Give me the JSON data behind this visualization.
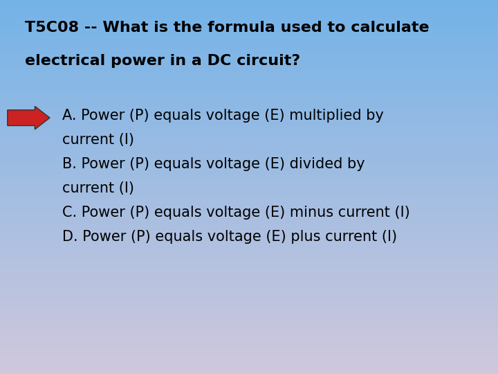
{
  "title_line1": "T5C08 -- What is the formula used to calculate",
  "title_line2": "electrical power in a DC circuit?",
  "answer_A_line1": "A. Power (P) equals voltage (E) multiplied by",
  "answer_A_line2": "current (I)",
  "answer_B_line1": "B. Power (P) equals voltage (E) divided by",
  "answer_B_line2": "current (I)",
  "answer_C": "C. Power (P) equals voltage (E) minus current (I)",
  "answer_D": "D. Power (P) equals voltage (E) plus current (I)",
  "bg_color_top": "#74b3e8",
  "bg_color_bottom": "#d0c8dc",
  "title_fontsize": 16,
  "answer_fontsize": 15,
  "title_color": "#000000",
  "answer_color": "#000000",
  "arrow_color_body": "#cc2222",
  "arrow_color_outline": "#333333"
}
